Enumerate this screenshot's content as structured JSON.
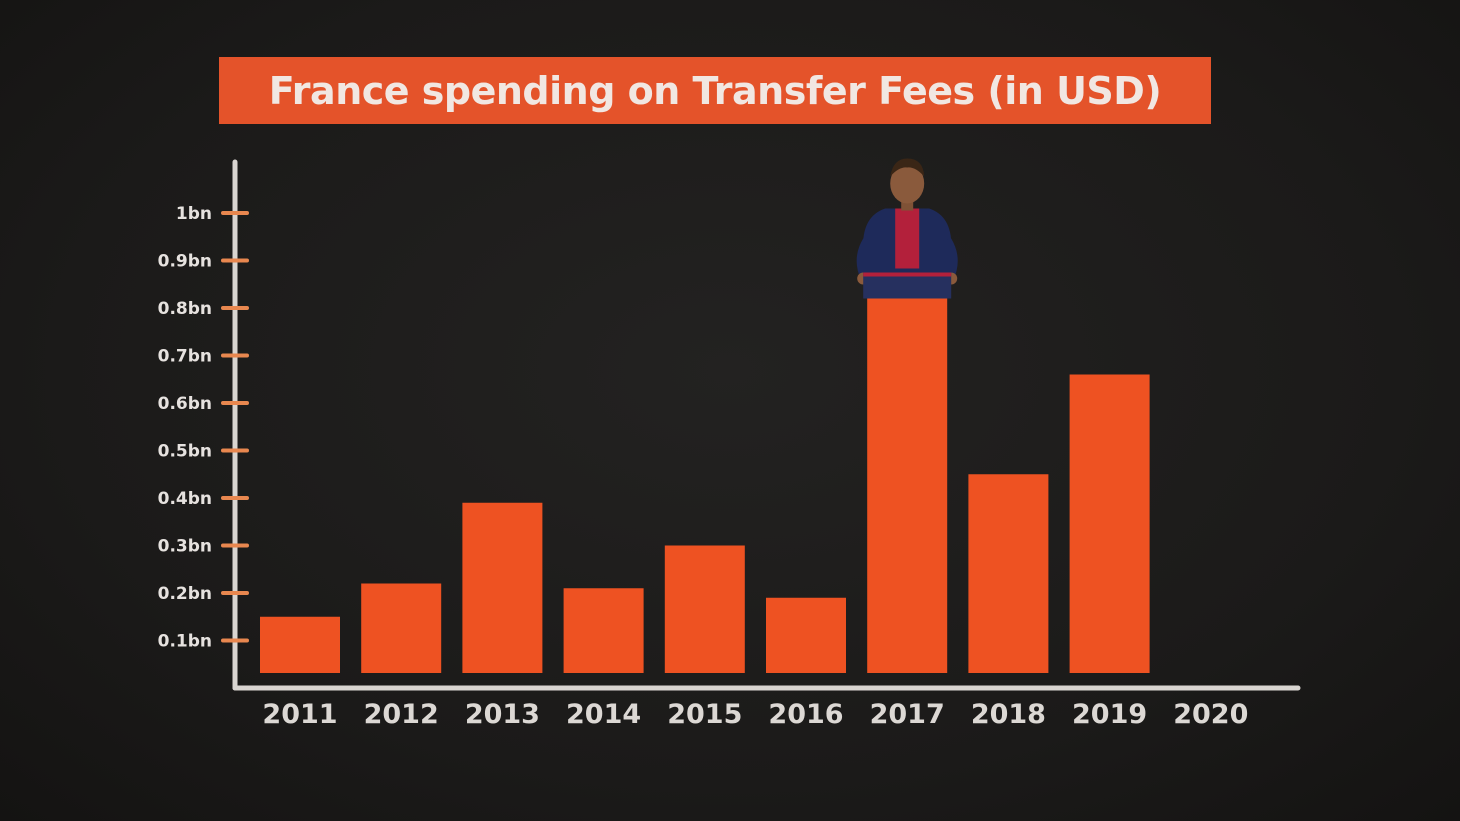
{
  "title": "France spending on Transfer Fees (in USD)",
  "colors": {
    "bar": "#ee5222",
    "title_bg": "#e4532a",
    "axis": "#d9d5d1",
    "tick_mark": "#e8874f",
    "background": "#1c1b1a"
  },
  "chart_data": {
    "type": "bar",
    "title": "France spending on Transfer Fees (in USD)",
    "xlabel": "",
    "ylabel": "",
    "categories": [
      "2011",
      "2012",
      "2013",
      "2014",
      "2015",
      "2016",
      "2017",
      "2018",
      "2019",
      "2020"
    ],
    "values": [
      0.15,
      0.22,
      0.39,
      0.21,
      0.3,
      0.19,
      0.82,
      0.45,
      0.66,
      null
    ],
    "unit": "bn",
    "ylim": [
      0,
      1.0
    ],
    "yticks": [
      0.1,
      0.2,
      0.3,
      0.4,
      0.5,
      0.6,
      0.7,
      0.8,
      0.9,
      1.0
    ],
    "ytick_labels": [
      "0.1bn",
      "0.2bn",
      "0.3bn",
      "0.4bn",
      "0.5bn",
      "0.6bn",
      "0.7bn",
      "0.8bn",
      "0.9bn",
      "1bn"
    ],
    "grid": false,
    "legend": "none"
  },
  "annotation": {
    "icon": "football-player-icon",
    "category": "2017"
  }
}
